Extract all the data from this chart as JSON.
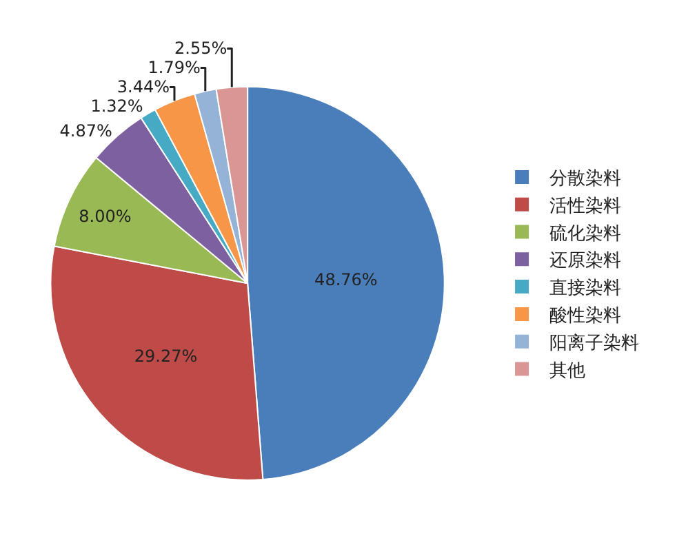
{
  "chart_data": {
    "type": "pie",
    "categories": [
      "分散染料",
      "活性染料",
      "硫化染料",
      "还原染料",
      "直接染料",
      "酸性染料",
      "阳离子染料",
      "其他"
    ],
    "values": [
      48.76,
      29.27,
      8.0,
      4.87,
      1.32,
      3.44,
      1.79,
      2.55
    ],
    "colors": [
      "#4a7ebb",
      "#be4b48",
      "#98b954",
      "#7d60a0",
      "#46aac5",
      "#f79646",
      "#95b3d7",
      "#d99694"
    ],
    "value_labels": [
      "48.76%",
      "29.27%",
      "8.00%",
      "4.87%",
      "1.32%",
      "3.44%",
      "1.79%",
      "2.55%"
    ],
    "legend": "right"
  }
}
